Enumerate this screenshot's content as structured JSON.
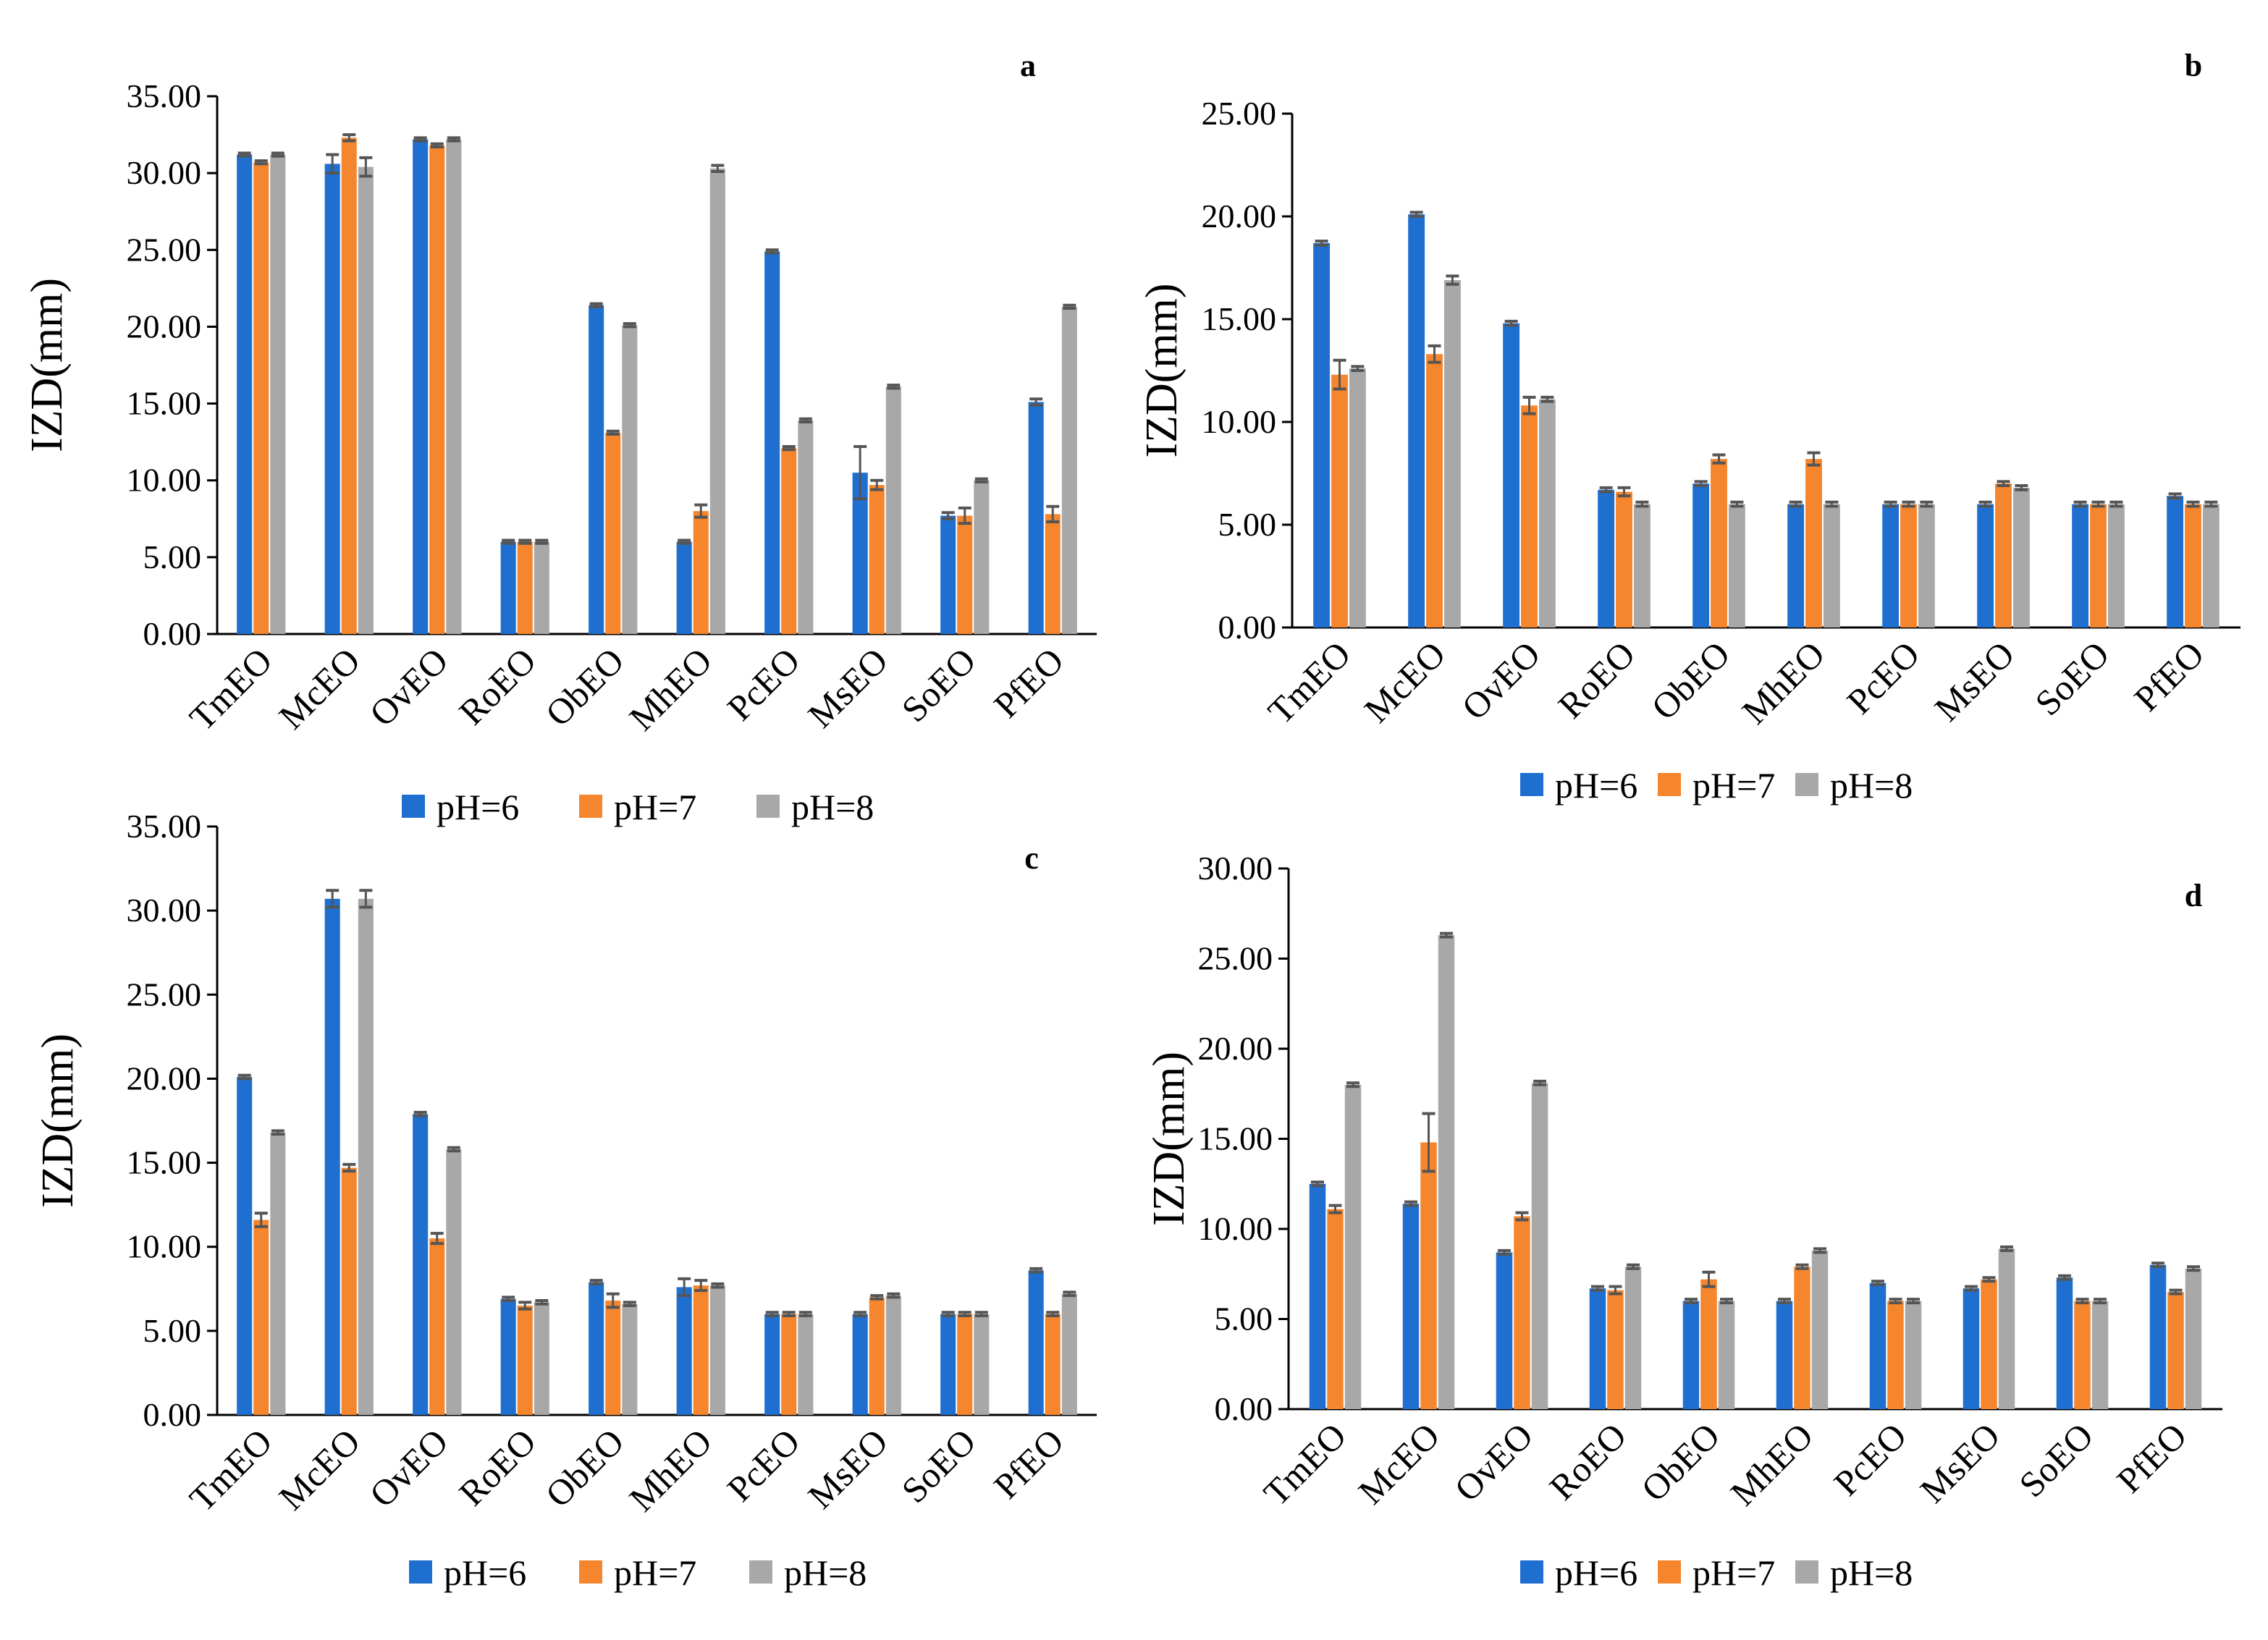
{
  "figure": {
    "colors": {
      "pH=6": "#1f6fd1",
      "pH=7": "#f5862e",
      "pH=8": "#a8a8a8",
      "errorbar": "#555555",
      "axis": "#000000"
    }
  },
  "chart_data": [
    {
      "panel": "a",
      "type": "bar",
      "ylabel": "IZD(mm)",
      "ylim": [
        0,
        35
      ],
      "yticks": [
        "0.00",
        "5.00",
        "10.00",
        "15.00",
        "20.00",
        "25.00",
        "30.00",
        "35.00"
      ],
      "categories": [
        "TmEO",
        "McEO",
        "OvEO",
        "RoEO",
        "ObEO",
        "MhEO",
        "PcEO",
        "MsEO",
        "SoEO",
        "PfEO"
      ],
      "series": [
        {
          "name": "pH=6",
          "values": [
            31.2,
            30.6,
            32.2,
            6.0,
            21.4,
            6.0,
            24.9,
            10.5,
            7.7,
            15.1
          ],
          "errors": [
            0.1,
            0.6,
            0.1,
            0.1,
            0.1,
            0.1,
            0.1,
            1.7,
            0.2,
            0.2
          ]
        },
        {
          "name": "pH=7",
          "values": [
            30.7,
            32.3,
            31.8,
            6.0,
            13.1,
            8.0,
            12.1,
            9.7,
            7.7,
            7.8
          ],
          "errors": [
            0.1,
            0.2,
            0.1,
            0.1,
            0.1,
            0.4,
            0.1,
            0.3,
            0.5,
            0.5
          ]
        },
        {
          "name": "pH=8",
          "values": [
            31.2,
            30.4,
            32.2,
            6.0,
            20.1,
            30.3,
            13.9,
            16.1,
            10.0,
            21.3
          ],
          "errors": [
            0.1,
            0.6,
            0.1,
            0.1,
            0.1,
            0.2,
            0.1,
            0.1,
            0.1,
            0.1
          ]
        }
      ]
    },
    {
      "panel": "b",
      "type": "bar",
      "ylabel": "IZD(mm)",
      "ylim": [
        0,
        25
      ],
      "yticks": [
        "0.00",
        "5.00",
        "10.00",
        "15.00",
        "20.00",
        "25.00"
      ],
      "categories": [
        "TmEO",
        "McEO",
        "OvEO",
        "RoEO",
        "ObEO",
        "MhEO",
        "PcEO",
        "MsEO",
        "SoEO",
        "PfEO"
      ],
      "series": [
        {
          "name": "pH=6",
          "values": [
            18.7,
            20.1,
            14.8,
            6.7,
            7.0,
            6.0,
            6.0,
            6.0,
            6.0,
            6.4
          ],
          "errors": [
            0.1,
            0.1,
            0.1,
            0.1,
            0.1,
            0.1,
            0.1,
            0.1,
            0.1,
            0.1
          ]
        },
        {
          "name": "pH=7",
          "values": [
            12.3,
            13.3,
            10.8,
            6.6,
            8.2,
            8.2,
            6.0,
            7.0,
            6.0,
            6.0
          ],
          "errors": [
            0.7,
            0.4,
            0.4,
            0.2,
            0.2,
            0.3,
            0.1,
            0.1,
            0.1,
            0.1
          ]
        },
        {
          "name": "pH=8",
          "values": [
            12.6,
            16.9,
            11.1,
            6.0,
            6.0,
            6.0,
            6.0,
            6.8,
            6.0,
            6.0
          ],
          "errors": [
            0.1,
            0.2,
            0.1,
            0.1,
            0.1,
            0.1,
            0.1,
            0.1,
            0.1,
            0.1
          ]
        }
      ]
    },
    {
      "panel": "c",
      "type": "bar",
      "ylabel": "IZD(mm)",
      "ylim": [
        0,
        35
      ],
      "yticks": [
        "0.00",
        "5.00",
        "10.00",
        "15.00",
        "20.00",
        "25.00",
        "30.00",
        "35.00"
      ],
      "categories": [
        "TmEO",
        "McEO",
        "OvEO",
        "RoEO",
        "ObEO",
        "MhEO",
        "PcEO",
        "MsEO",
        "SoEO",
        "PfEO"
      ],
      "series": [
        {
          "name": "pH=6",
          "values": [
            20.1,
            30.7,
            17.9,
            6.9,
            7.9,
            7.6,
            6.0,
            6.0,
            6.0,
            8.6
          ],
          "errors": [
            0.1,
            0.5,
            0.1,
            0.1,
            0.1,
            0.5,
            0.1,
            0.1,
            0.1,
            0.1
          ]
        },
        {
          "name": "pH=7",
          "values": [
            11.6,
            14.7,
            10.5,
            6.5,
            6.8,
            7.7,
            6.0,
            7.0,
            6.0,
            6.0
          ],
          "errors": [
            0.4,
            0.2,
            0.3,
            0.2,
            0.4,
            0.3,
            0.1,
            0.1,
            0.1,
            0.1
          ]
        },
        {
          "name": "pH=8",
          "values": [
            16.8,
            30.7,
            15.8,
            6.7,
            6.6,
            7.7,
            6.0,
            7.1,
            6.0,
            7.2
          ],
          "errors": [
            0.1,
            0.5,
            0.1,
            0.1,
            0.1,
            0.1,
            0.1,
            0.1,
            0.1,
            0.1
          ]
        }
      ]
    },
    {
      "panel": "d",
      "type": "bar",
      "ylabel": "IZD(mm)",
      "ylim": [
        0,
        30
      ],
      "yticks": [
        "0.00",
        "5.00",
        "10.00",
        "15.00",
        "20.00",
        "25.00",
        "30.00"
      ],
      "categories": [
        "TmEO",
        "McEO",
        "OvEO",
        "RoEO",
        "ObEO",
        "MhEO",
        "PcEO",
        "MsEO",
        "SoEO",
        "PfEO"
      ],
      "series": [
        {
          "name": "pH=6",
          "values": [
            12.5,
            11.4,
            8.7,
            6.7,
            6.0,
            6.0,
            7.0,
            6.7,
            7.3,
            8.0
          ],
          "errors": [
            0.1,
            0.1,
            0.1,
            0.1,
            0.1,
            0.1,
            0.1,
            0.1,
            0.1,
            0.1
          ]
        },
        {
          "name": "pH=7",
          "values": [
            11.1,
            14.8,
            10.7,
            6.6,
            7.2,
            7.9,
            6.0,
            7.2,
            6.0,
            6.5
          ],
          "errors": [
            0.2,
            1.6,
            0.2,
            0.2,
            0.4,
            0.1,
            0.1,
            0.1,
            0.1,
            0.1
          ]
        },
        {
          "name": "pH=8",
          "values": [
            18.0,
            26.3,
            18.1,
            7.9,
            6.0,
            8.8,
            6.0,
            8.9,
            6.0,
            7.8
          ],
          "errors": [
            0.1,
            0.1,
            0.1,
            0.1,
            0.1,
            0.1,
            0.1,
            0.1,
            0.1,
            0.1
          ]
        }
      ]
    }
  ]
}
